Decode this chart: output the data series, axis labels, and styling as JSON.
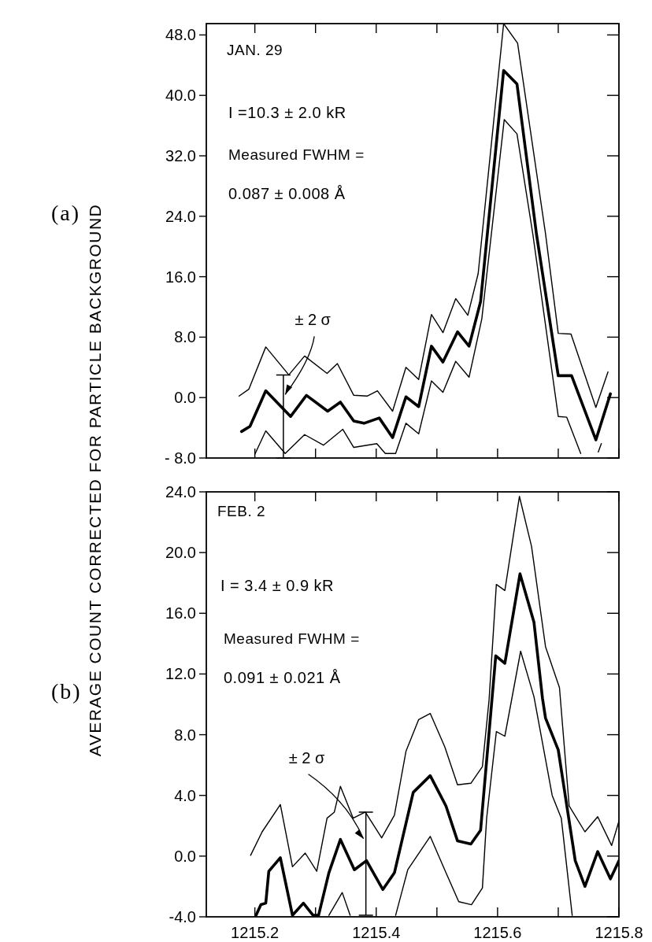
{
  "chart_data": [
    {
      "type": "line",
      "ylabel": "AVERAGE COUNT CORRECTED FOR PARTICLE BACKGROUND",
      "tick_labels": "y",
      "xlim": [
        1215.12,
        1215.8
      ],
      "ylim": [
        -8,
        49.5
      ],
      "xticks": [
        {
          "value": 1215.2,
          "label": null
        },
        {
          "value": 1215.3,
          "label": null
        },
        {
          "value": 1215.4,
          "label": null
        },
        {
          "value": 1215.5,
          "label": null
        },
        {
          "value": 1215.6,
          "label": null
        },
        {
          "value": 1215.7,
          "label": null
        },
        {
          "value": 1215.8,
          "label": null
        }
      ],
      "yticks": [
        {
          "value": -8,
          "label": "- 8.0"
        },
        {
          "value": 0,
          "label": "0.0"
        },
        {
          "value": 8,
          "label": "8.0"
        },
        {
          "value": 16,
          "label": "16.0"
        },
        {
          "value": 24,
          "label": "24.0"
        },
        {
          "value": 32,
          "label": "32.0"
        },
        {
          "value": 40,
          "label": "40.0"
        },
        {
          "value": 48,
          "label": "48.0"
        }
      ],
      "annotations": [
        "(a)",
        "JAN. 29",
        "I =10.3 ± 2.0 kR",
        "Measured FWHM =",
        "0.087 ± 0.008 Å",
        {
          "text": "± 2 σ",
          "x": 1215.25,
          "y": 0.4
        }
      ],
      "series": [
        {
          "type": "line",
          "color": "#000000",
          "x": [
            1215.178,
            1215.192,
            1215.218,
            1215.259,
            1215.285,
            1215.32,
            1215.341,
            1215.363,
            1215.38,
            1215.405,
            1215.427,
            1215.449,
            1215.47,
            1215.491,
            1215.51,
            1215.534,
            1215.553,
            1215.572,
            1215.61,
            1215.632,
            1215.664,
            1215.7,
            1215.722,
            1215.762,
            1215.786
          ],
          "values": [
            -4.5,
            -3.8,
            0.9,
            -2.5,
            0.3,
            -1.8,
            -0.6,
            -3.1,
            -3.4,
            -2.7,
            -5.3,
            0.1,
            -1.2,
            6.8,
            4.7,
            8.7,
            6.8,
            12.7,
            43.3,
            41.5,
            21.7,
            2.9,
            2.9,
            -5.6,
            0.5
          ]
        },
        {
          "type": "line",
          "color": "#000000",
          "x": [
            1215.174,
            1215.19,
            1215.218,
            1215.256,
            1215.282,
            1215.319,
            1215.336,
            1215.363,
            1215.385,
            1215.402,
            1215.427,
            1215.449,
            1215.47,
            1215.491,
            1215.51,
            1215.531,
            1215.551,
            1215.568,
            1215.61,
            1215.633,
            1215.679,
            1215.7,
            1215.721,
            1215.762,
            1215.782
          ],
          "values": [
            0.2,
            1.1,
            6.7,
            3.0,
            5.5,
            3.2,
            4.5,
            0.3,
            0.2,
            0.9,
            -1.8,
            4.0,
            2.4,
            11.0,
            8.6,
            13.1,
            10.9,
            16.4,
            49.5,
            46.9,
            21.7,
            8.5,
            8.4,
            -1.3,
            3.4
          ]
        },
        {
          "type": "line",
          "color": "#000000",
          "x": [
            1215.2,
            1215.218,
            1215.25,
            1215.282,
            1215.313,
            1215.345,
            1215.363,
            1215.401,
            1215.415,
            1215.432,
            1215.449,
            1215.47,
            1215.491,
            1215.51,
            1215.531,
            1215.553,
            1215.574,
            1215.611,
            1215.632,
            1215.658,
            1215.7,
            1215.714,
            1215.737,
            1215.76,
            1215.766,
            1215.771
          ],
          "values": [
            -7.5,
            -4.4,
            -7.4,
            -4.9,
            -6.3,
            -4.2,
            -6.6,
            -6.1,
            -7.4,
            -7.4,
            -3.4,
            -4.8,
            2.2,
            0.7,
            4.8,
            2.7,
            10.4,
            36.8,
            34.9,
            21.7,
            -2.5,
            -2.6,
            -7.4,
            null,
            -7.2,
            -6.1
          ]
        },
        {
          "type": "line",
          "color": "#000000",
          "x": [
            1215.247,
            1215.247
          ],
          "values": [
            -8,
            3
          ]
        }
      ]
    },
    {
      "type": "line",
      "tick_labels": true,
      "xlim": [
        1215.12,
        1215.8
      ],
      "ylim": [
        -4,
        24
      ],
      "xticks": [
        {
          "value": 1215.2,
          "label": "1215.2"
        },
        {
          "value": 1215.3,
          "label": null
        },
        {
          "value": 1215.4,
          "label": "1215.4"
        },
        {
          "value": 1215.5,
          "label": null
        },
        {
          "value": 1215.6,
          "label": "1215.6"
        },
        {
          "value": 1215.7,
          "label": null
        },
        {
          "value": 1215.8,
          "label": "1215.8"
        }
      ],
      "yticks": [
        {
          "value": -4,
          "label": "-4.0"
        },
        {
          "value": 0,
          "label": "0.0"
        },
        {
          "value": 4,
          "label": "4.0"
        },
        {
          "value": 8,
          "label": "8.0"
        },
        {
          "value": 12,
          "label": "12.0"
        },
        {
          "value": 16,
          "label": "16.0"
        },
        {
          "value": 20,
          "label": "20.0"
        },
        {
          "value": 24,
          "label": "24.0"
        }
      ],
      "annotations": [
        "(b)",
        "FEB. 2",
        "I = 3.4 ± 0.9 kR",
        "Measured FWHM =",
        "0.091 ± 0.021 Å",
        {
          "text": "± 2 σ",
          "x": 1215.379,
          "y": 1.15
        }
      ],
      "series": [
        {
          "type": "line",
          "color": "#000000",
          "x": [
            1215.202,
            1215.21,
            1215.218,
            1215.223,
            1215.242,
            1215.262,
            1215.28,
            1215.296,
            1215.305,
            1215.322,
            1215.341,
            1215.364,
            1215.384,
            1215.411,
            1215.43,
            1215.461,
            1215.489,
            1215.515,
            1215.534,
            1215.556,
            1215.572,
            1215.582,
            1215.597,
            1215.612,
            1215.637,
            1215.66,
            1215.674,
            1215.679,
            1215.7,
            1215.728,
            1215.744,
            1215.765,
            1215.786,
            1215.8
          ],
          "values": [
            -3.9,
            -3.2,
            -3.1,
            -1.0,
            -0.1,
            -3.9,
            -3.1,
            -3.9,
            -3.9,
            -1.1,
            1.1,
            -0.9,
            -0.3,
            -2.2,
            -1.1,
            4.2,
            5.3,
            3.3,
            1.0,
            0.8,
            1.7,
            6.3,
            13.2,
            12.7,
            18.6,
            15.4,
            10.4,
            9.1,
            7.0,
            -0.3,
            -2.0,
            0.3,
            -1.5,
            -0.3
          ]
        },
        {
          "type": "line",
          "color": "#000000",
          "x": [
            1215.193,
            1215.212,
            1215.242,
            1215.262,
            1215.283,
            1215.302,
            1215.319,
            1215.331,
            1215.341,
            1215.362,
            1215.382,
            1215.409,
            1215.43,
            1215.449,
            1215.47,
            1215.489,
            1215.513,
            1215.534,
            1215.556,
            1215.575,
            1215.586,
            1215.598,
            1215.612,
            1215.636,
            1215.656,
            1215.679,
            1215.702,
            1215.718,
            1215.744,
            1215.765,
            1215.788,
            1215.8
          ],
          "values": [
            0.05,
            1.6,
            3.4,
            -0.7,
            0.2,
            -1.0,
            2.5,
            2.9,
            4.6,
            2.5,
            2.9,
            1.2,
            2.7,
            6.9,
            9.0,
            9.4,
            7.2,
            4.7,
            4.8,
            5.9,
            10.3,
            17.9,
            17.5,
            23.7,
            20.4,
            13.8,
            11.1,
            3.3,
            1.6,
            2.6,
            0.7,
            2.3
          ]
        },
        {
          "type": "line",
          "color": "#000000",
          "x": [
            1215.322,
            1215.344,
            1215.357,
            1215.4,
            1215.432,
            1215.452,
            1215.489,
            1215.515,
            1215.536,
            1215.557,
            1215.575,
            1215.582,
            1215.598,
            1215.612,
            1215.638,
            1215.66,
            1215.69,
            1215.705,
            1215.723
          ],
          "values": [
            -3.9,
            -2.4,
            -3.9,
            null,
            -3.9,
            -0.9,
            1.3,
            -1.1,
            -3.0,
            -3.2,
            -2.1,
            2.5,
            8.2,
            7.9,
            13.5,
            10.5,
            4.0,
            2.5,
            -3.9
          ]
        },
        {
          "type": "line",
          "color": "#000000",
          "x": [
            1215.383,
            1215.383
          ],
          "values": [
            -3.9,
            2.9
          ]
        }
      ]
    }
  ]
}
